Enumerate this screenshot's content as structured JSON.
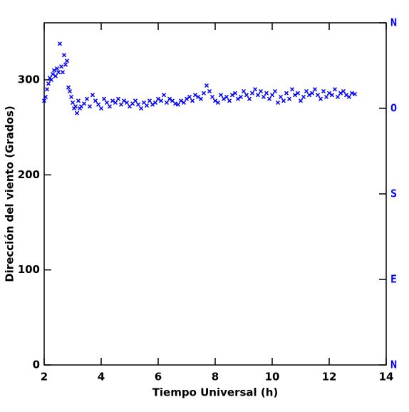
{
  "chart_data": {
    "type": "scatter",
    "x_label": "Tiempo Universal (h)",
    "y_label": "Dirección del viento (Grados)",
    "xlim": [
      2,
      14
    ],
    "xticks": [
      2,
      4,
      6,
      8,
      10,
      12,
      14
    ],
    "ylim": [
      0,
      360
    ],
    "yticks": [
      0,
      100,
      200,
      300
    ],
    "y2lim": [
      0,
      360
    ],
    "y2ticks": [
      {
        "value": 0,
        "label": "N"
      },
      {
        "value": 90,
        "label": "E"
      },
      {
        "value": 180,
        "label": "S"
      },
      {
        "value": 270,
        "label": "O"
      },
      {
        "value": 360,
        "label": "N"
      }
    ],
    "y2color": "#0000ff",
    "series": [
      {
        "color": "#0000ff",
        "x": [
          2.0,
          2.05,
          2.1,
          2.15,
          2.2,
          2.25,
          2.3,
          2.35,
          2.4,
          2.45,
          2.5,
          2.55,
          2.6,
          2.65,
          2.7,
          2.75,
          2.8,
          2.85,
          2.9,
          2.95,
          3.0,
          3.05,
          3.1,
          3.15,
          3.2,
          3.25,
          3.3,
          3.4,
          3.5,
          3.6,
          3.7,
          3.8,
          3.9,
          4.0,
          4.1,
          4.2,
          4.3,
          4.4,
          4.5,
          4.6,
          4.7,
          4.8,
          4.9,
          5.0,
          5.1,
          5.2,
          5.3,
          5.4,
          5.5,
          5.6,
          5.7,
          5.8,
          5.9,
          6.0,
          6.1,
          6.2,
          6.3,
          6.4,
          6.5,
          6.6,
          6.7,
          6.8,
          6.9,
          7.0,
          7.1,
          7.2,
          7.3,
          7.4,
          7.5,
          7.6,
          7.7,
          7.8,
          7.9,
          8.0,
          8.1,
          8.2,
          8.3,
          8.4,
          8.5,
          8.6,
          8.7,
          8.8,
          8.9,
          9.0,
          9.1,
          9.2,
          9.3,
          9.4,
          9.5,
          9.6,
          9.7,
          9.8,
          9.9,
          10.0,
          10.1,
          10.2,
          10.3,
          10.4,
          10.5,
          10.6,
          10.7,
          10.8,
          10.9,
          11.0,
          11.1,
          11.2,
          11.3,
          11.4,
          11.5,
          11.6,
          11.7,
          11.8,
          11.9,
          12.0,
          12.1,
          12.2,
          12.3,
          12.4,
          12.5,
          12.6,
          12.7,
          12.8,
          12.9
        ],
        "values": [
          278,
          282,
          290,
          296,
          302,
          300,
          306,
          310,
          304,
          312,
          308,
          338,
          314,
          308,
          326,
          316,
          320,
          292,
          288,
          282,
          276,
          270,
          272,
          265,
          278,
          270,
          272,
          275,
          280,
          272,
          284,
          278,
          274,
          270,
          280,
          276,
          272,
          278,
          276,
          280,
          274,
          278,
          276,
          272,
          275,
          278,
          274,
          270,
          276,
          273,
          278,
          274,
          276,
          280,
          278,
          284,
          276,
          280,
          278,
          275,
          274,
          278,
          276,
          280,
          282,
          278,
          284,
          282,
          280,
          286,
          294,
          288,
          282,
          278,
          276,
          284,
          280,
          282,
          278,
          284,
          286,
          280,
          282,
          288,
          284,
          280,
          286,
          290,
          284,
          288,
          282,
          286,
          280,
          284,
          288,
          276,
          282,
          278,
          286,
          280,
          290,
          284,
          286,
          278,
          282,
          288,
          284,
          286,
          290,
          284,
          280,
          288,
          282,
          286,
          284,
          290,
          282,
          286,
          288,
          284,
          282,
          286,
          285
        ]
      }
    ]
  }
}
